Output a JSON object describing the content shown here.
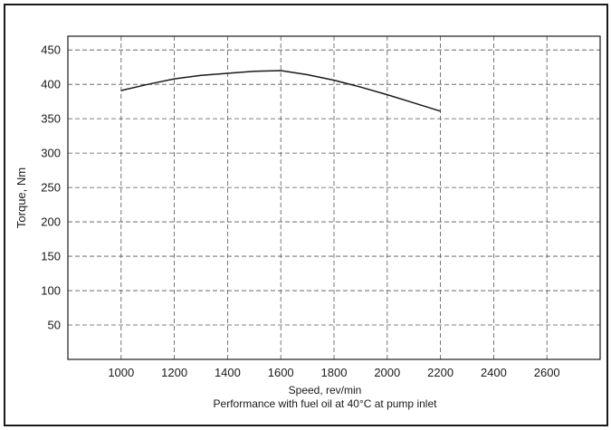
{
  "chart_data": {
    "type": "line",
    "title": "",
    "xlabel": "Speed, rev/min",
    "ylabel": "Torque, Nm",
    "caption": "Performance with fuel oil at 40°C at pump inlet",
    "xlim": [
      800,
      2800
    ],
    "ylim": [
      0,
      470
    ],
    "xticks": [
      1000,
      1200,
      1400,
      1600,
      1800,
      2000,
      2200,
      2400,
      2600
    ],
    "yticks": [
      50,
      100,
      150,
      200,
      250,
      300,
      350,
      400,
      450
    ],
    "grid": true,
    "series": [
      {
        "x": [
          1000,
          1100,
          1200,
          1300,
          1400,
          1500,
          1600,
          1700,
          1800,
          1900,
          2000,
          2100,
          2200
        ],
        "y": [
          391,
          400,
          408,
          413,
          416,
          419,
          420,
          414,
          406,
          396,
          385,
          373,
          361
        ]
      }
    ],
    "line_color": "#1a1a1a",
    "grid_color": "#555555"
  }
}
